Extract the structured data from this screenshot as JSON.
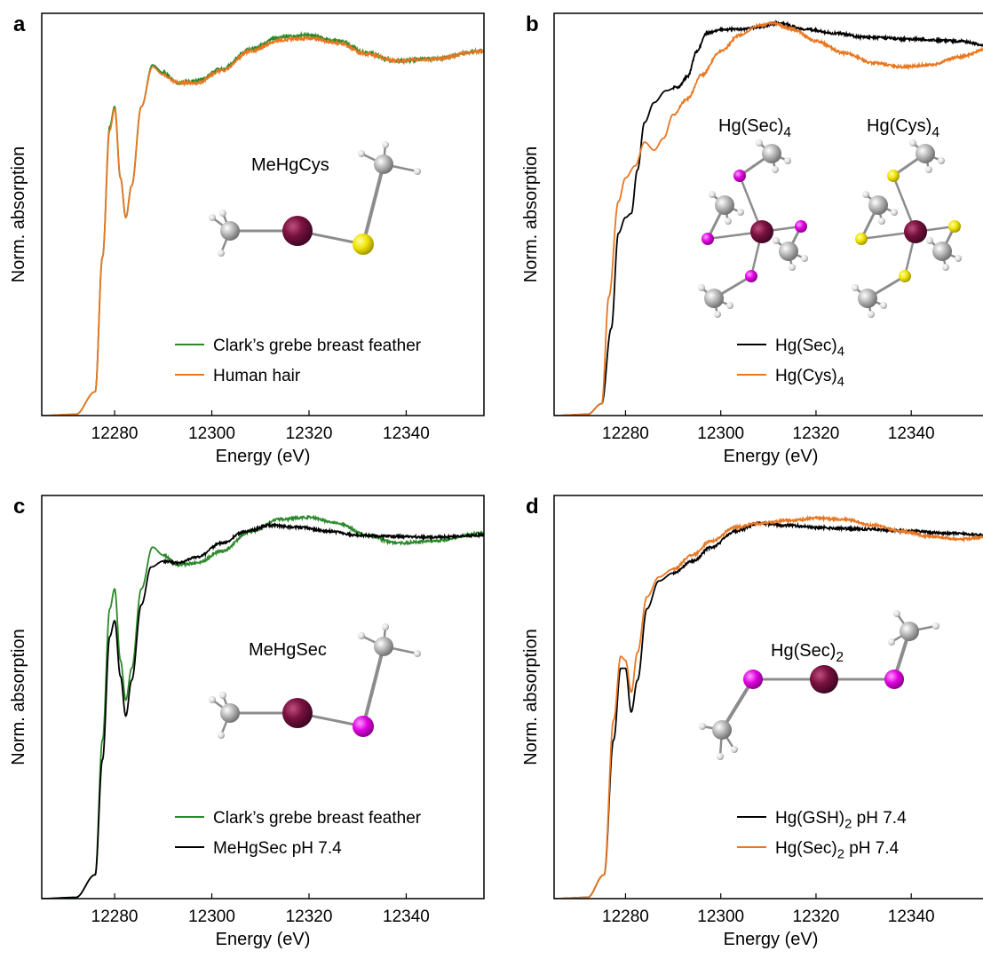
{
  "chart_data": [
    {
      "panel": "a",
      "type": "line",
      "xlabel": "Energy (eV)",
      "ylabel": "Norm. absorption",
      "xlim": [
        12265,
        12356
      ],
      "ylim": [
        0,
        1
      ],
      "x_ticks": [
        12280,
        12300,
        12320,
        12340
      ],
      "legend_position": "bottom-right",
      "molecule_label": "MeHgCys",
      "molecule": {
        "atoms": [
          {
            "el": "C",
            "x": 12268.0,
            "y": 0.46
          },
          {
            "el": "Hg",
            "x": 12282.0,
            "y": 0.46
          },
          {
            "el": "S",
            "x": 12296.0,
            "y": 0.46
          },
          {
            "el": "C",
            "x": 12298.0,
            "y": 0.62
          }
        ],
        "bonds": [
          [
            0,
            1
          ],
          [
            1,
            2
          ],
          [
            2,
            3
          ]
        ],
        "hydrogens": [
          [
            0,
            -1.2,
            0.05
          ],
          [
            0,
            0.3,
            -0.08
          ],
          [
            0,
            -0.8,
            -0.07
          ],
          [
            3,
            0.4,
            0.1
          ],
          [
            3,
            1.0,
            -0.02
          ],
          [
            3,
            -1.2,
            0.02
          ]
        ],
        "origin_x": 12270,
        "origin_y": 0.0
      },
      "series": [
        {
          "name": "Clark’s grebe breast feather",
          "color": "#2a8a2a",
          "profile": "grebe",
          "jitter": 0.004
        },
        {
          "name": "Human hair",
          "color": "#e87722",
          "profile": "hair",
          "jitter": 0.004
        }
      ]
    },
    {
      "panel": "b",
      "type": "line",
      "xlabel": "Energy (eV)",
      "ylabel": "Norm. absorption",
      "xlim": [
        12265,
        12356
      ],
      "ylim": [
        0,
        1
      ],
      "x_ticks": [
        12280,
        12300,
        12320,
        12340
      ],
      "legend_position": "bottom-right",
      "molecule_labels": [
        {
          "main": "Hg(Sec)",
          "sub": "4"
        },
        {
          "main": "Hg(Cys)",
          "sub": "4"
        }
      ],
      "series": [
        {
          "name_main": "Hg(Sec)",
          "name_sub": "4",
          "name_tail": "",
          "color": "#000000",
          "profile": "hgsec4",
          "jitter": 0.003
        },
        {
          "name_main": "Hg(Cys)",
          "name_sub": "4",
          "name_tail": "",
          "color": "#e87722",
          "profile": "hgcys4",
          "jitter": 0.003
        }
      ]
    },
    {
      "panel": "c",
      "type": "line",
      "xlabel": "Energy (eV)",
      "ylabel": "Norm. absorption",
      "xlim": [
        12265,
        12356
      ],
      "ylim": [
        0,
        1
      ],
      "x_ticks": [
        12280,
        12300,
        12320,
        12340
      ],
      "legend_position": "bottom-right",
      "molecule_label": "MeHgSec",
      "series": [
        {
          "name": "Clark’s grebe breast feather",
          "color": "#2a8a2a",
          "profile": "grebe",
          "jitter": 0.003
        },
        {
          "name": "MeHgSec pH 7.4",
          "color": "#000000",
          "profile": "mehgsec",
          "jitter": 0.003
        }
      ]
    },
    {
      "panel": "d",
      "type": "line",
      "xlabel": "Energy (eV)",
      "ylabel": "Norm. absorption",
      "xlim": [
        12265,
        12356
      ],
      "ylim": [
        0,
        1
      ],
      "x_ticks": [
        12280,
        12300,
        12320,
        12340
      ],
      "legend_position": "bottom-right",
      "molecule_label_main": "Hg(Sec)",
      "molecule_label_sub": "2",
      "series": [
        {
          "name_main": "Hg(GSH)",
          "name_sub": "2",
          "name_tail": " pH 7.4",
          "color": "#000000",
          "profile": "hggsh2",
          "jitter": 0.003
        },
        {
          "name_main": "Hg(Sec)",
          "name_sub": "2",
          "name_tail": " pH 7.4",
          "color": "#e87722",
          "profile": "hgsec2",
          "jitter": 0.003
        }
      ]
    }
  ],
  "atom_colors": {
    "Hg": "#6e0f3a",
    "S": "#f2e600",
    "Se": "#e600e6",
    "C": "#b8b8b8",
    "H": "#e4e4e4"
  }
}
